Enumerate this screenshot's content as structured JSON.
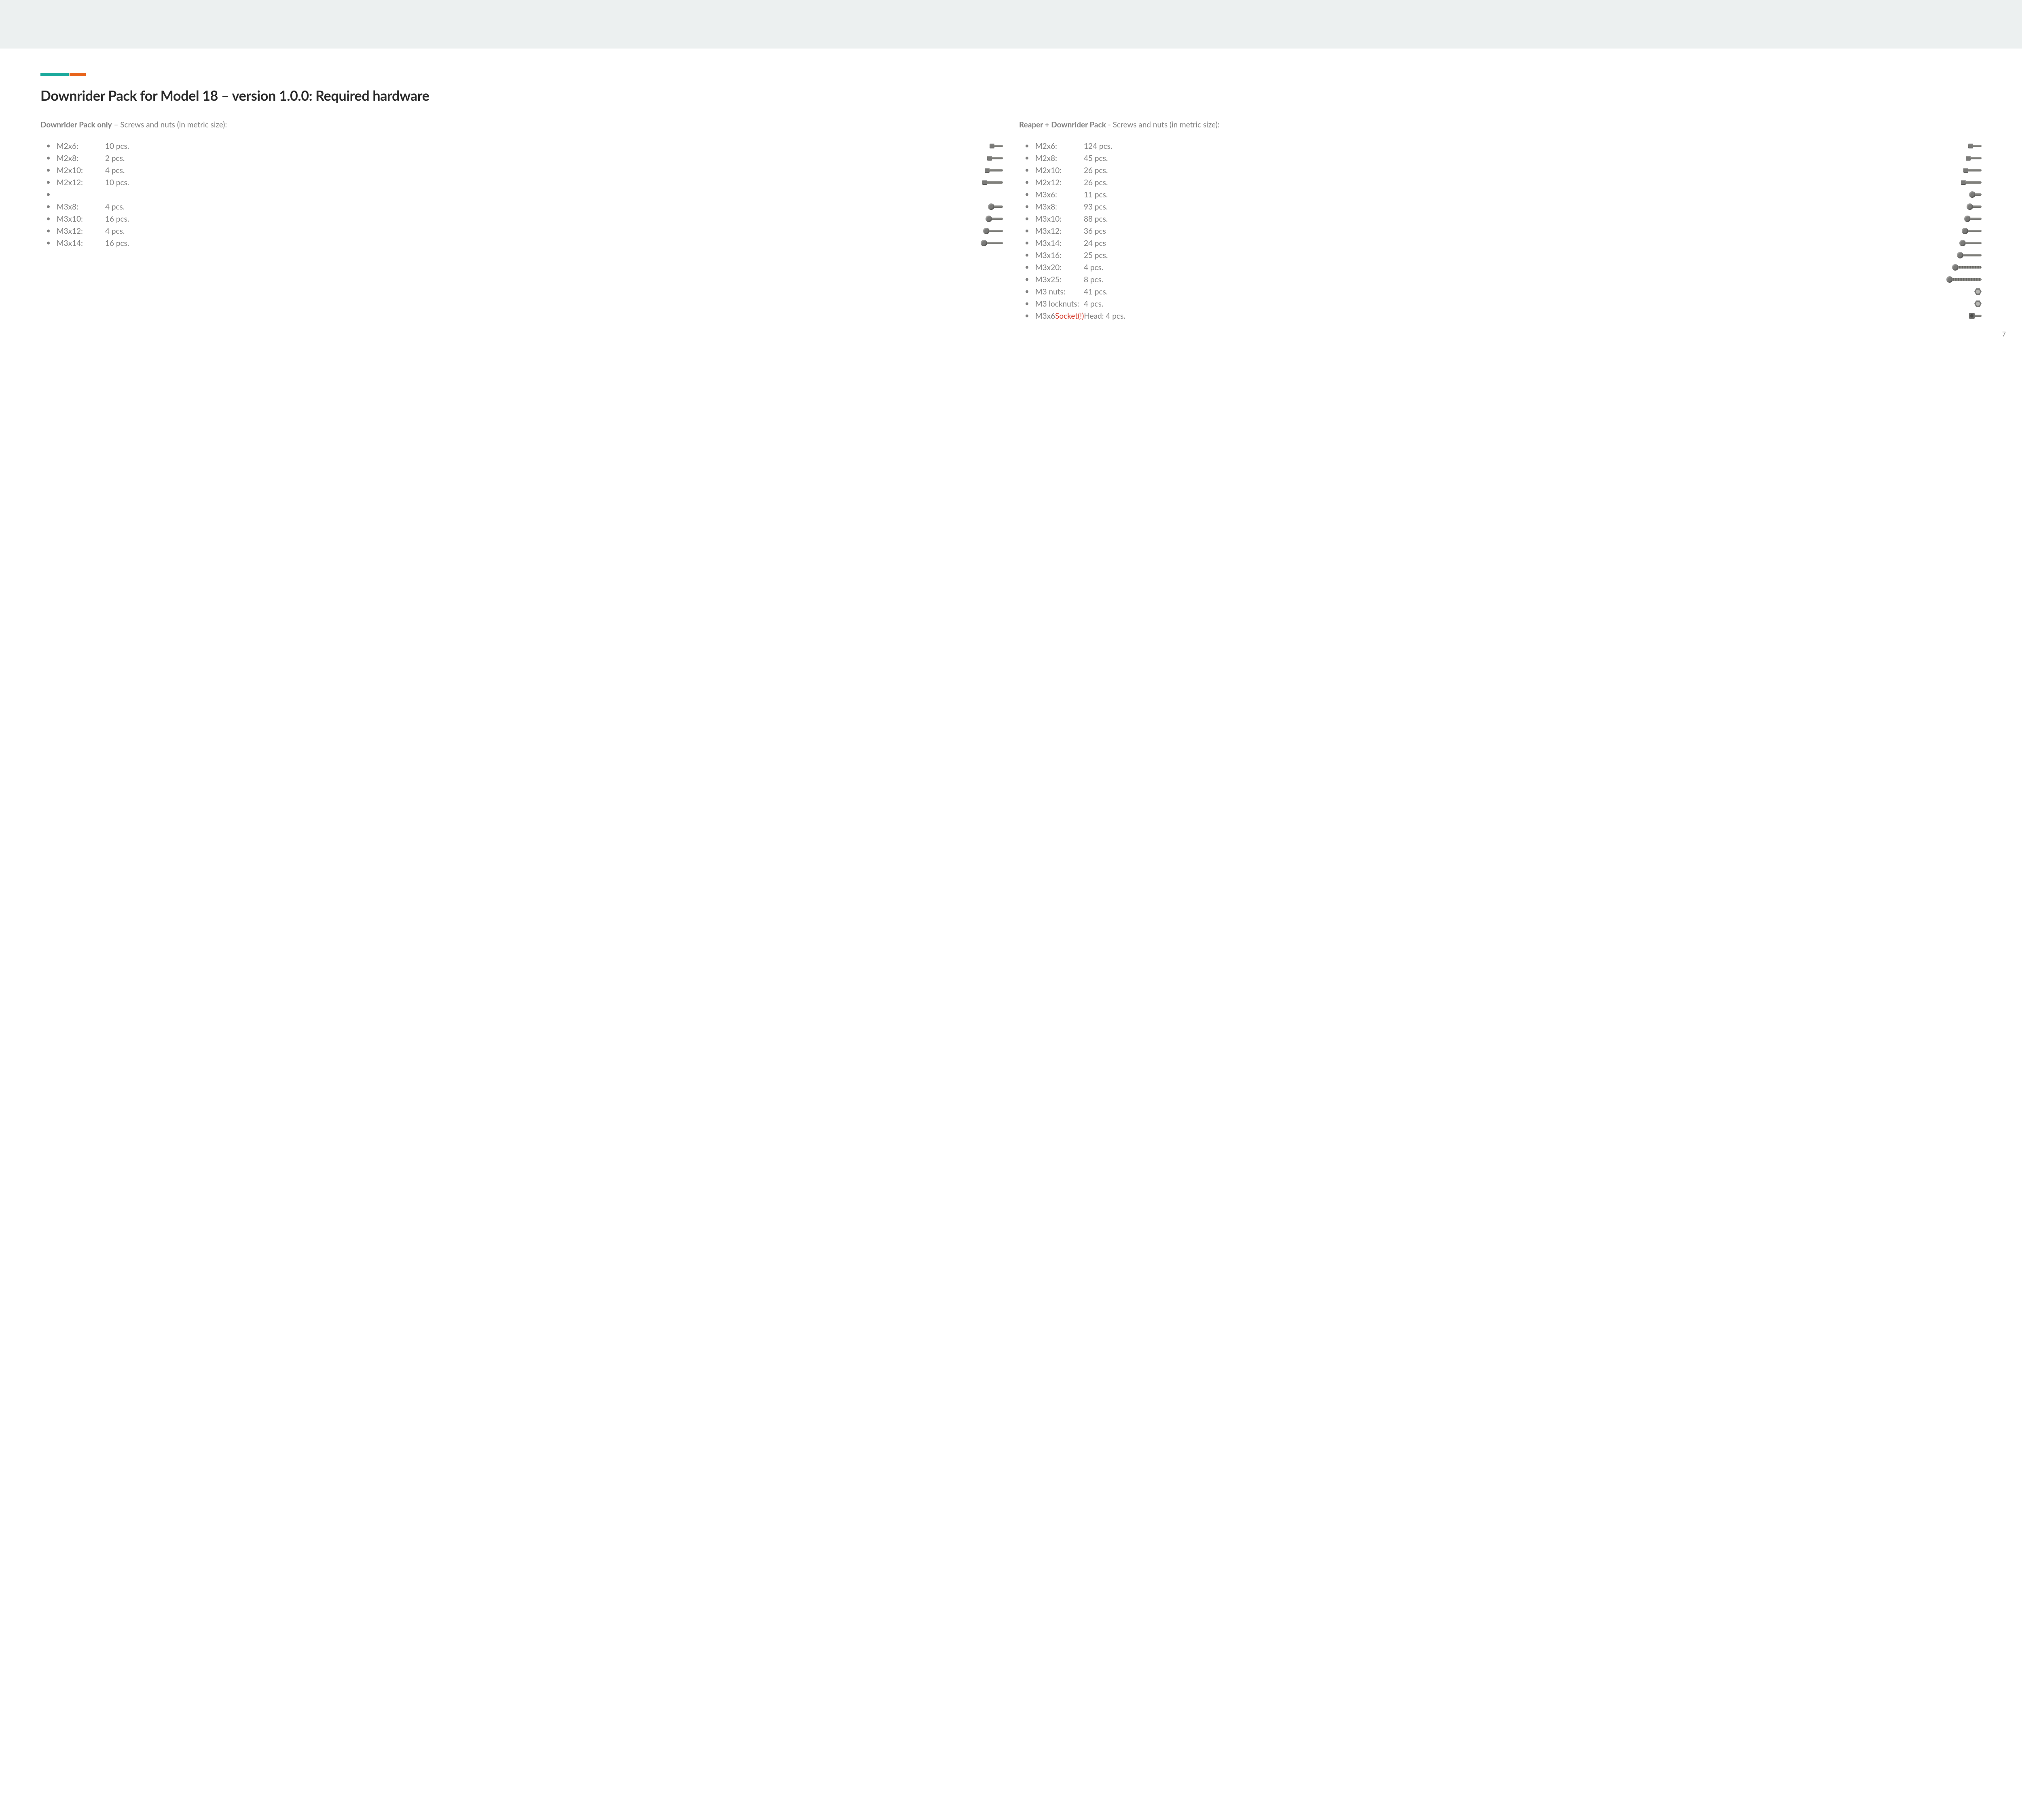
{
  "page_number": "7",
  "title": "Downrider Pack for Model 18 – version 1.0.0: Required hardware",
  "accent_colors": {
    "teal": "#1aa99c",
    "orange": "#e8641b"
  },
  "left": {
    "header_strong": "Downrider Pack only",
    "header_rest": " – Screws and nuts (in metric size):",
    "items": [
      {
        "size": "M2x6:",
        "qty": "10 pcs.",
        "icon": "cap",
        "shaft": 22
      },
      {
        "size": "M2x8:",
        "qty": "2 pcs.",
        "icon": "cap",
        "shaft": 28
      },
      {
        "size": "M2x10:",
        "qty": "4 pcs.",
        "icon": "cap",
        "shaft": 34
      },
      {
        "size": "M2x12:",
        "qty": "10 pcs.",
        "icon": "cap",
        "shaft": 40
      },
      {
        "blank": true
      },
      {
        "size": "M3x8:",
        "qty": "4 pcs.",
        "icon": "button",
        "shaft": 22
      },
      {
        "size": "M3x10:",
        "qty": "16 pcs.",
        "icon": "button",
        "shaft": 28
      },
      {
        "size": "M3x12:",
        "qty": "4 pcs.",
        "icon": "button",
        "shaft": 34
      },
      {
        "size": "M3x14:",
        "qty": "16 pcs.",
        "icon": "button",
        "shaft": 40
      }
    ]
  },
  "right": {
    "header_strong": "Reaper + Downrider Pack",
    "header_rest": " - Screws and nuts (in metric size):",
    "items": [
      {
        "size": "M2x6:",
        "qty": "124 pcs.",
        "icon": "cap",
        "shaft": 22
      },
      {
        "size": "M2x8:",
        "qty": "45 pcs.",
        "icon": "cap",
        "shaft": 28
      },
      {
        "size": "M2x10:",
        "qty": "26 pcs.",
        "icon": "cap",
        "shaft": 34
      },
      {
        "size": "M2x12:",
        "qty": "26 pcs.",
        "icon": "cap",
        "shaft": 40
      },
      {
        "size": "M3x6:",
        "qty": "11 pcs.",
        "icon": "button",
        "shaft": 16
      },
      {
        "size": "M3x8:",
        "qty": "93 pcs.",
        "icon": "button",
        "shaft": 22
      },
      {
        "size": "M3x10:",
        "qty": "88 pcs.",
        "icon": "button",
        "shaft": 28
      },
      {
        "size": "M3x12:",
        "qty": "36 pcs",
        "icon": "button",
        "shaft": 34
      },
      {
        "size": "M3x14:",
        "qty": "24 pcs",
        "icon": "button",
        "shaft": 40
      },
      {
        "size": "M3x16:",
        "qty": "25 pcs.",
        "icon": "button",
        "shaft": 46
      },
      {
        "size": "M3x20:",
        "qty": "4 pcs.",
        "icon": "button",
        "shaft": 58,
        "threaded": true
      },
      {
        "size": "M3x25:",
        "qty": "8 pcs.",
        "icon": "button",
        "shaft": 72,
        "threaded": true
      },
      {
        "size": "M3 nuts:",
        "qty": "41 pcs.",
        "icon": "nut"
      },
      {
        "size": "M3 locknuts:",
        "qty": "4 pcs.",
        "icon": "nut"
      },
      {
        "size": "M3x6 ",
        "highlight": "Socket(!)",
        "extra": " Head: 4 pcs.",
        "icon": "socket",
        "shaft": 18
      }
    ]
  }
}
